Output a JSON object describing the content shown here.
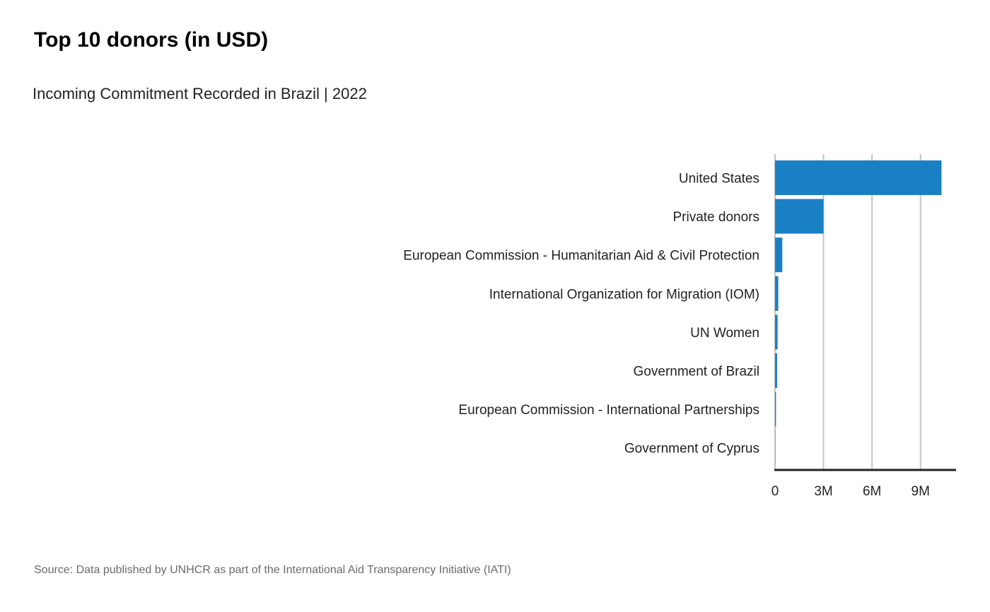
{
  "title": "Top 10 donors (in USD)",
  "subtitle": "Incoming Commitment Recorded in Brazil | 2022",
  "source": "Source: Data published by UNHCR as part of the International  Aid Transparency Initiative (IATI)",
  "colors": {
    "bar": "#1a80c4",
    "grid": "#c4c4c4",
    "axis": "#222222",
    "label": "#222222"
  },
  "chart_data": {
    "type": "bar",
    "orientation": "horizontal",
    "categories": [
      "United States",
      "Private donors",
      "European Commission - Humanitarian Aid & Civil Protection",
      "International Organization for Migration (IOM)",
      "UN Women",
      "Government of Brazil",
      "European Commission - International Partnerships",
      "Government of Cyprus"
    ],
    "values": [
      10300000,
      3000000,
      450000,
      200000,
      160000,
      130000,
      60000,
      10000
    ],
    "xlim": [
      0,
      11200000
    ],
    "xticks": [
      0,
      3000000,
      6000000,
      9000000
    ],
    "xtick_labels": [
      "0",
      "3M",
      "6M",
      "9M"
    ],
    "grid": true,
    "xlabel": "",
    "ylabel": ""
  }
}
